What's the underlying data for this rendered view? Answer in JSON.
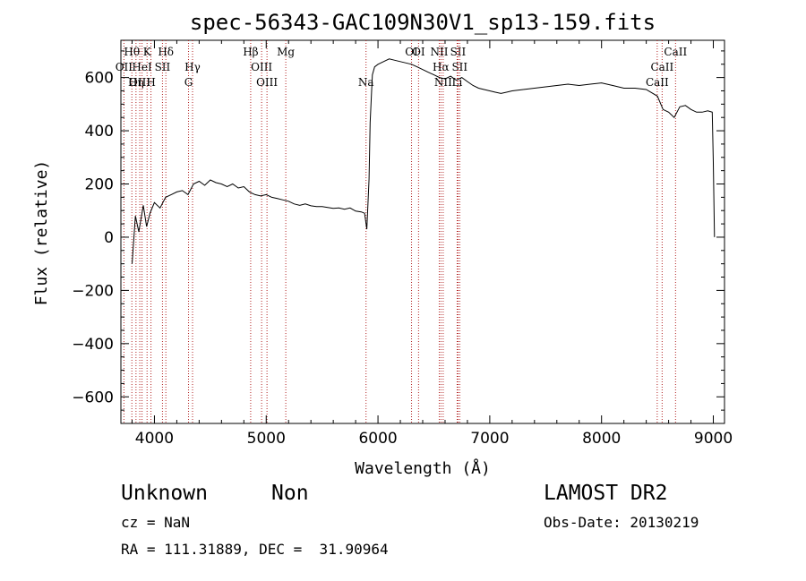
{
  "chart_data": {
    "type": "line",
    "title": "spec-56343-GAC109N30V1_sp13-159.fits",
    "xlabel": "Wavelength (Å)",
    "ylabel": "Flux (relative)",
    "xlim": [
      3700,
      9100
    ],
    "ylim": [
      -700,
      740
    ],
    "xticks": [
      4000,
      5000,
      6000,
      7000,
      8000,
      9000
    ],
    "yticks": [
      -600,
      -400,
      -200,
      0,
      200,
      400,
      600
    ],
    "grid": false,
    "series": [
      {
        "x": [
          3800,
          3830,
          3860,
          3900,
          3930,
          3960,
          4000,
          4050,
          4100,
          4150,
          4200,
          4250,
          4300,
          4350,
          4400,
          4450,
          4500,
          4550,
          4600,
          4650,
          4700,
          4750,
          4800,
          4850,
          4900,
          4950,
          5000,
          5050,
          5100,
          5150,
          5200,
          5250,
          5300,
          5350,
          5400,
          5450,
          5500,
          5550,
          5600,
          5650,
          5700,
          5750,
          5800,
          5850,
          5880,
          5900,
          5910,
          5920,
          5930,
          5950,
          5970,
          6000,
          6050,
          6100,
          6150,
          6200,
          6250,
          6300,
          6350,
          6400,
          6450,
          6500,
          6550,
          6600,
          6650,
          6700,
          6750,
          6800,
          6850,
          6900,
          6950,
          7000,
          7050,
          7100,
          7150,
          7200,
          7300,
          7400,
          7500,
          7600,
          7700,
          7800,
          7900,
          8000,
          8100,
          8200,
          8300,
          8400,
          8500,
          8550,
          8600,
          8650,
          8700,
          8750,
          8800,
          8850,
          8900,
          8950,
          8990,
          9000,
          9010
        ],
        "y": [
          -100,
          80,
          20,
          120,
          40,
          90,
          130,
          110,
          150,
          160,
          170,
          175,
          160,
          200,
          210,
          195,
          215,
          205,
          200,
          190,
          200,
          185,
          190,
          170,
          160,
          155,
          160,
          150,
          145,
          140,
          135,
          125,
          120,
          125,
          118,
          115,
          115,
          112,
          108,
          110,
          105,
          110,
          98,
          95,
          90,
          30,
          120,
          220,
          430,
          610,
          640,
          650,
          660,
          670,
          665,
          660,
          655,
          650,
          640,
          630,
          620,
          610,
          600,
          595,
          605,
          590,
          600,
          585,
          570,
          560,
          555,
          550,
          545,
          540,
          545,
          550,
          555,
          560,
          565,
          570,
          575,
          570,
          575,
          580,
          570,
          560,
          560,
          555,
          530,
          480,
          470,
          450,
          490,
          495,
          480,
          470,
          470,
          475,
          470,
          280,
          0
        ]
      }
    ],
    "lines": [
      {
        "label": "Hθ",
        "x": 3798,
        "row": 1
      },
      {
        "label": "OII",
        "x": 3727,
        "row": 2
      },
      {
        "label": "OIII",
        "x": 3869,
        "row": 3
      },
      {
        "label": "Hη",
        "x": 3835,
        "row": 3
      },
      {
        "label": "K",
        "x": 3934,
        "row": 1
      },
      {
        "label": "HeI",
        "x": 3889,
        "row": 2
      },
      {
        "label": "H",
        "x": 3969,
        "row": 3
      },
      {
        "label": "Hδ",
        "x": 4102,
        "row": 1
      },
      {
        "label": "SII",
        "x": 4072,
        "row": 2
      },
      {
        "label": "Hγ",
        "x": 4341,
        "row": 2
      },
      {
        "label": "G",
        "x": 4305,
        "row": 3
      },
      {
        "label": "Hβ",
        "x": 4861,
        "row": 1
      },
      {
        "label": "OIII",
        "x": 4959,
        "row": 2
      },
      {
        "label": "OIII",
        "x": 5007,
        "row": 3
      },
      {
        "label": "Mg",
        "x": 5175,
        "row": 1
      },
      {
        "label": "Na",
        "x": 5893,
        "row": 3
      },
      {
        "label": "OI",
        "x": 6300,
        "row": 1
      },
      {
        "label": "OI",
        "x": 6363,
        "row": 1
      },
      {
        "label": "NII",
        "x": 6548,
        "row": 1
      },
      {
        "label": "Hα",
        "x": 6563,
        "row": 2
      },
      {
        "label": "NII",
        "x": 6583,
        "row": 3
      },
      {
        "label": "SII",
        "x": 6716,
        "row": 1
      },
      {
        "label": "SII",
        "x": 6731,
        "row": 2
      },
      {
        "label": "Li",
        "x": 6708,
        "row": 3
      },
      {
        "label": "CaII",
        "x": 8662,
        "row": 1
      },
      {
        "label": "CaII",
        "x": 8542,
        "row": 2
      },
      {
        "label": "CaII",
        "x": 8498,
        "row": 3
      }
    ]
  },
  "info": {
    "object_class": "Unknown",
    "subclass": "Non",
    "survey": "LAMOST DR2",
    "cz": "cz = NaN",
    "obs_date": "Obs-Date: 20130219",
    "coords": "RA = 111.31889, DEC =  31.90964"
  }
}
